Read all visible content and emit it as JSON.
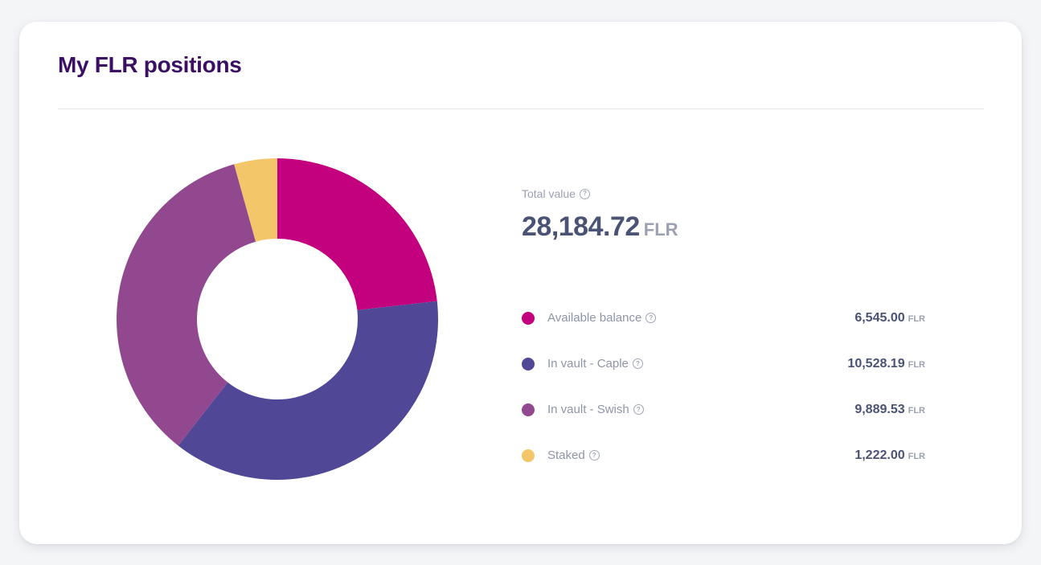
{
  "card": {
    "title": "My FLR positions"
  },
  "summary": {
    "total_label": "Total value",
    "total_amount": "28,184.72",
    "total_unit": "FLR",
    "help_icon": "question-circle-icon"
  },
  "legend": [
    {
      "label": "Available balance",
      "amount": "6,545.00",
      "unit": "FLR",
      "color": "#c3017f"
    },
    {
      "label": "In vault - Caple",
      "amount": "10,528.19",
      "unit": "FLR",
      "color": "#504897"
    },
    {
      "label": "In vault - Swish",
      "amount": "9,889.53",
      "unit": "FLR",
      "color": "#92488f"
    },
    {
      "label": "Staked",
      "amount": "1,222.00",
      "unit": "FLR",
      "color": "#f4c66a"
    }
  ],
  "chart_data": {
    "type": "pie",
    "style": "donut",
    "unit": "FLR",
    "categories": [
      "Available balance",
      "In vault - Caple",
      "In vault - Swish",
      "Staked"
    ],
    "values": [
      6545.0,
      10528.19,
      9889.53,
      1222.0
    ],
    "colors": [
      "#c3017f",
      "#504897",
      "#92488f",
      "#f4c66a"
    ],
    "start_angle": "12 o'clock",
    "direction": "clockwise"
  }
}
